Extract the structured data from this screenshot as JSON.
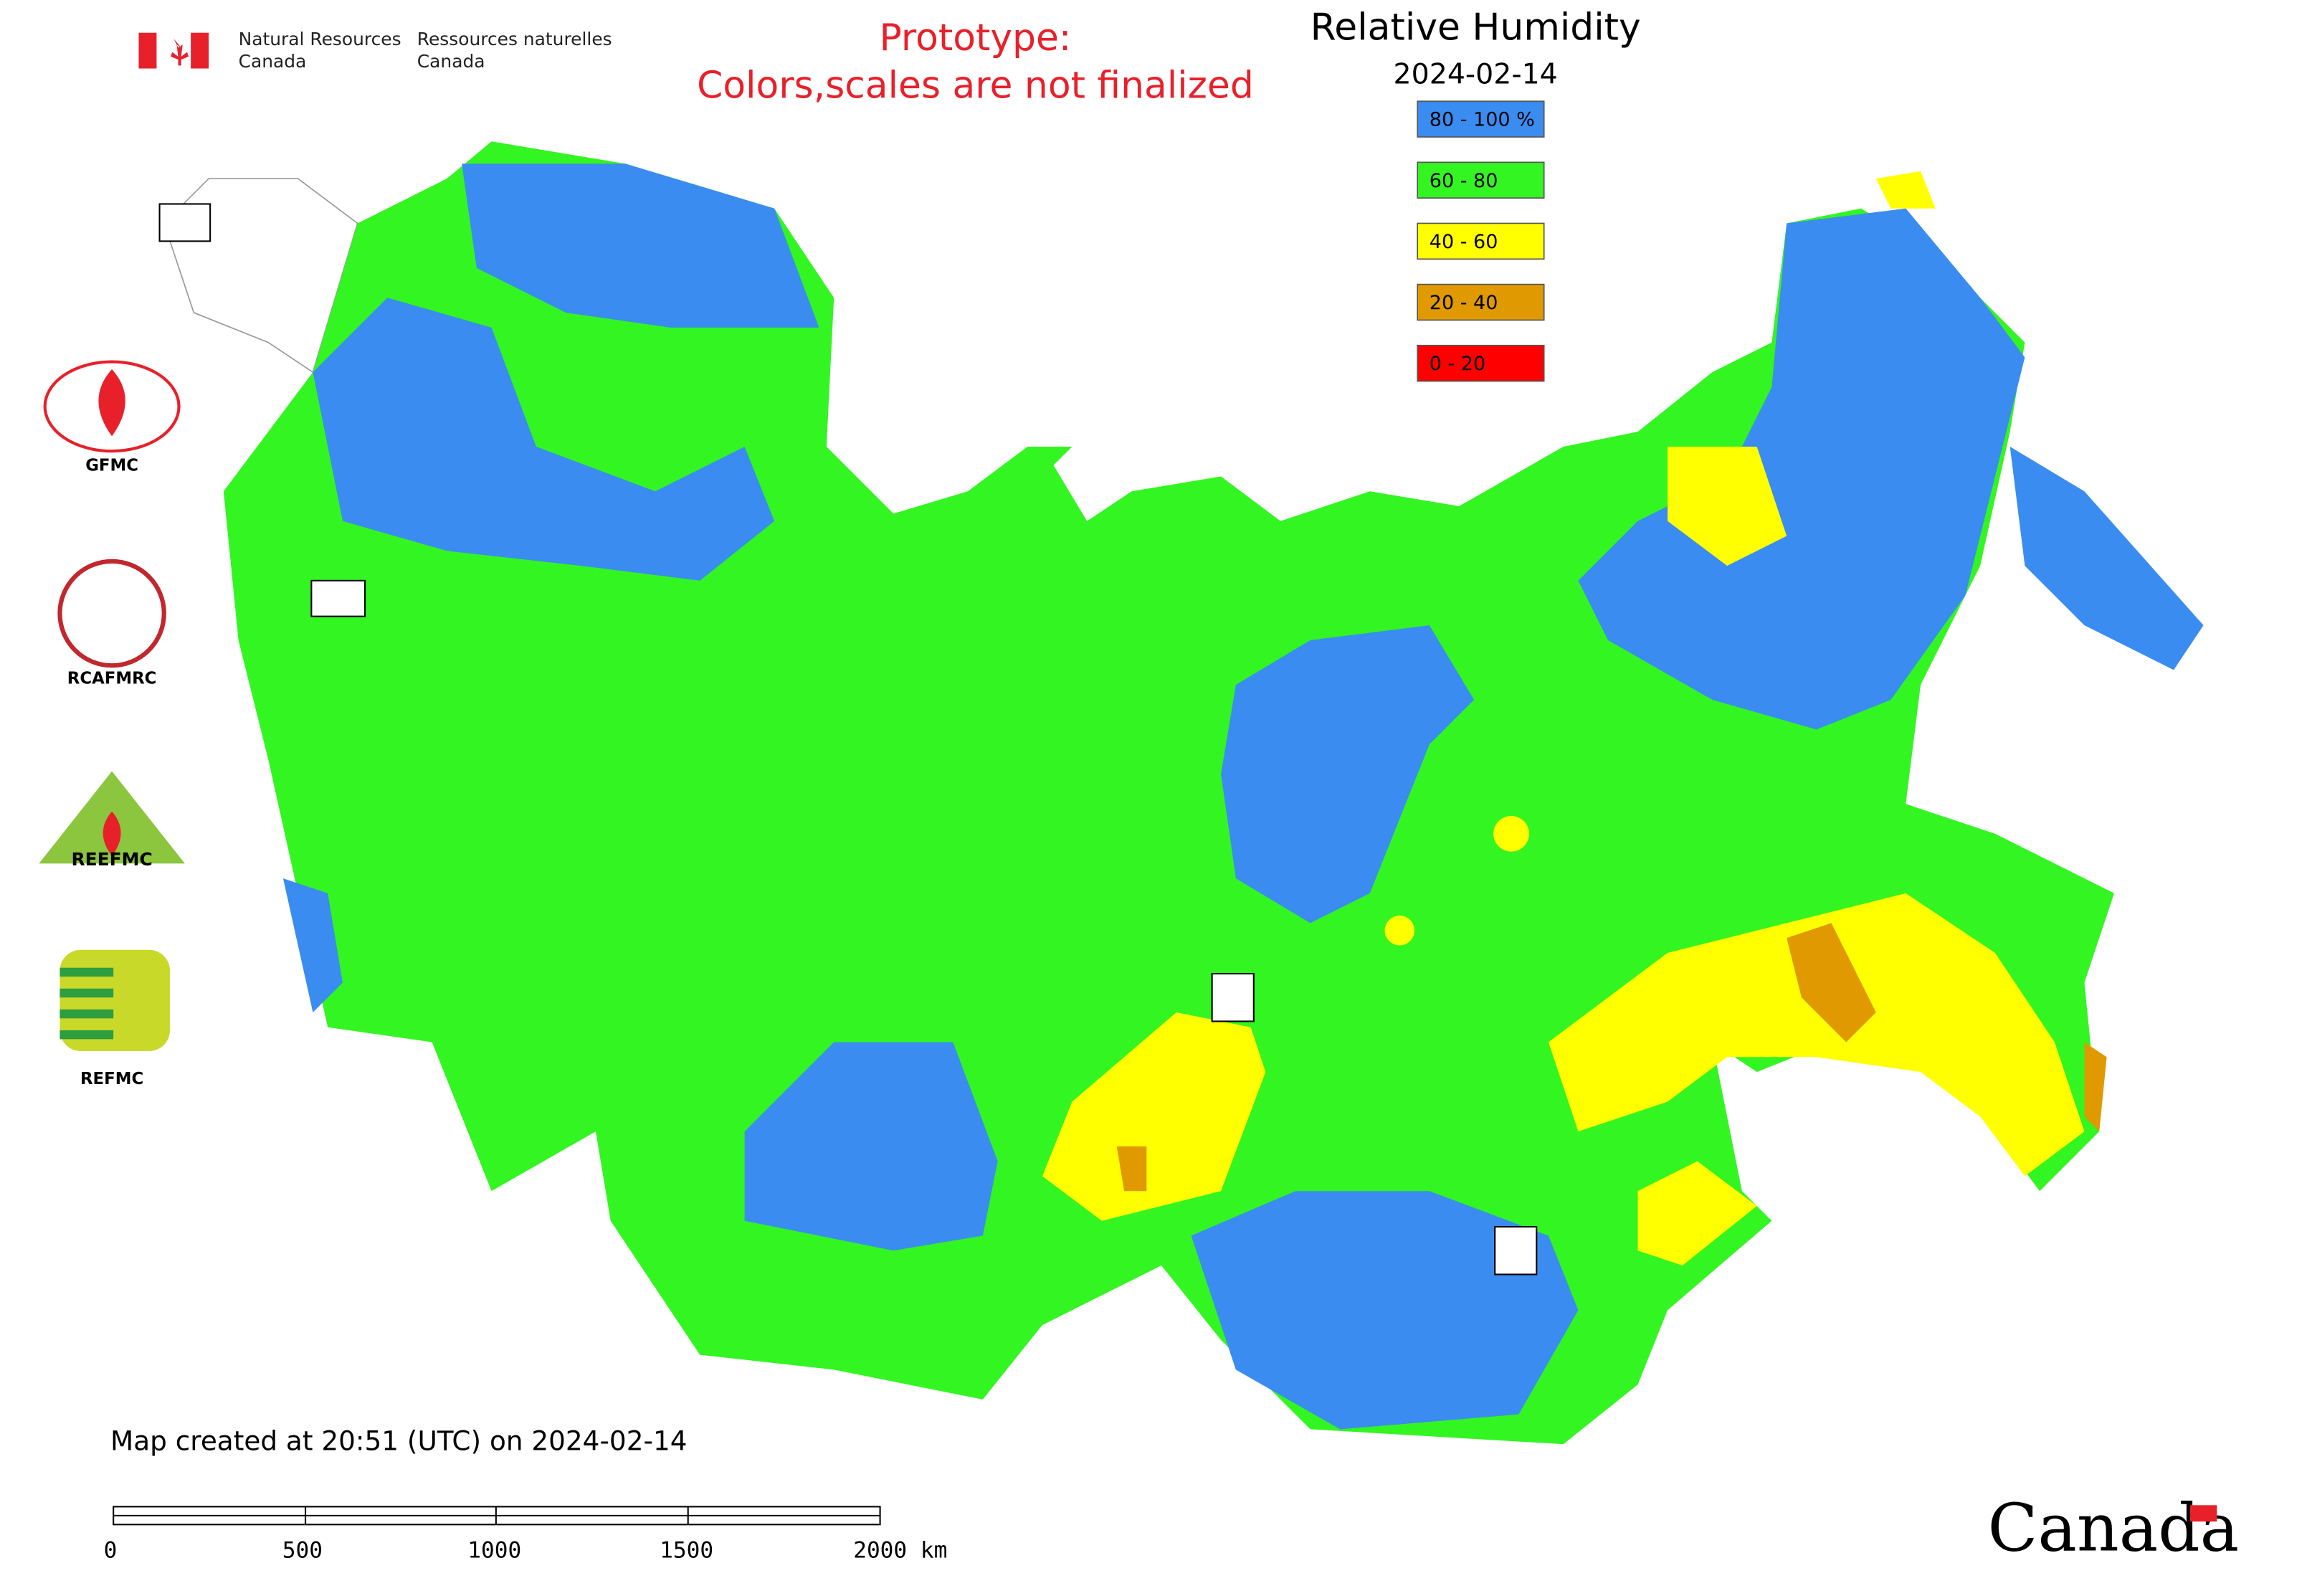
{
  "header": {
    "agency_en": [
      "Natural Resources",
      "Canada"
    ],
    "agency_fr": [
      "Ressources naturelles",
      "Canada"
    ],
    "notice": [
      "Prototype:",
      "Colors,scales are not finalized"
    ]
  },
  "map": {
    "title": "Relative Humidity",
    "date": "2024-02-14",
    "legend": [
      {
        "label": "80 - 100 %",
        "color": "#3a8cf0"
      },
      {
        "label": "60 - 80",
        "color": "#33f522"
      },
      {
        "label": "40 - 60",
        "color": "#ffff00"
      },
      {
        "label": "20 - 40",
        "color": "#e09a00"
      },
      {
        "label": "0 - 20",
        "color": "#ff0000"
      }
    ],
    "partners": [
      "GFMC",
      "RCAFMRC",
      "REEFMC",
      "REFMC"
    ],
    "footer": "Map created at 20:51 (UTC) on 2024-02-14",
    "scale_labels": [
      "0",
      "500",
      "1000",
      "1500",
      "2000 km"
    ],
    "wordmark": "Canada"
  }
}
